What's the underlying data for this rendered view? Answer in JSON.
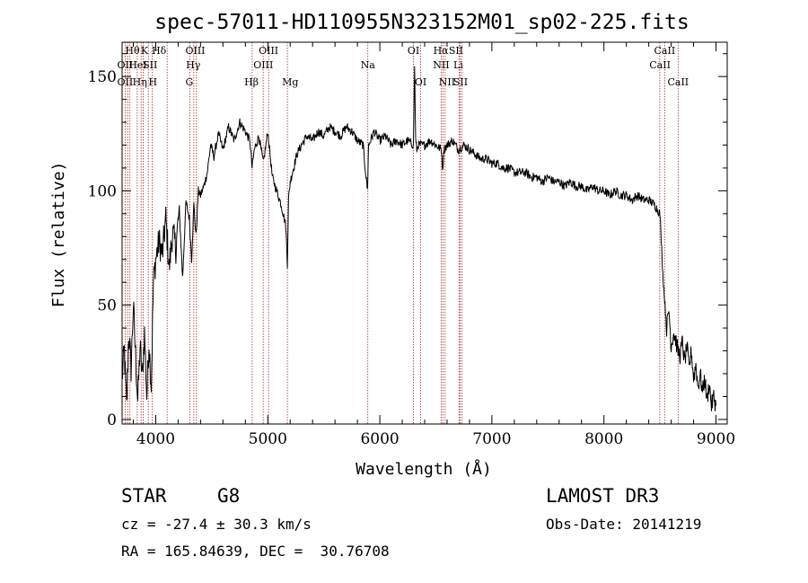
{
  "chart_data": {
    "type": "line",
    "title": "spec-57011-HD110955N323152M01_sp02-225.fits",
    "xlabel": "Wavelength (Å)",
    "ylabel": "Flux (relative)",
    "xlim": [
      3700,
      9100
    ],
    "ylim": [
      -2,
      165
    ],
    "x_ticks": [
      4000,
      5000,
      6000,
      7000,
      8000,
      9000
    ],
    "y_ticks": [
      0,
      50,
      100,
      150
    ],
    "x_minor_step": 200,
    "y_minor_step": 10,
    "grid": false,
    "series": [
      {
        "name": "flux",
        "x": [
          3700,
          3720,
          3740,
          3760,
          3780,
          3800,
          3820,
          3840,
          3860,
          3880,
          3900,
          3920,
          3940,
          3960,
          3980,
          4000,
          4030,
          4060,
          4090,
          4120,
          4150,
          4180,
          4210,
          4240,
          4270,
          4300,
          4320,
          4340,
          4360,
          4380,
          4400,
          4430,
          4460,
          4490,
          4520,
          4560,
          4600,
          4650,
          4700,
          4750,
          4800,
          4840,
          4860,
          4880,
          4920,
          4960,
          5000,
          5040,
          5080,
          5120,
          5160,
          5175,
          5185,
          5200,
          5230,
          5260,
          5300,
          5350,
          5400,
          5450,
          5500,
          5550,
          5600,
          5650,
          5700,
          5750,
          5800,
          5850,
          5890,
          5895,
          5900,
          5950,
          6000,
          6050,
          6100,
          6150,
          6200,
          6250,
          6300,
          6310,
          6320,
          6330,
          6340,
          6400,
          6450,
          6500,
          6550,
          6563,
          6570,
          6600,
          6650,
          6700,
          6750,
          6800,
          6850,
          6900,
          6950,
          7000,
          7050,
          7100,
          7150,
          7200,
          7250,
          7300,
          7350,
          7400,
          7450,
          7500,
          7550,
          7600,
          7650,
          7700,
          7750,
          7800,
          7850,
          7900,
          7950,
          8000,
          8050,
          8100,
          8150,
          8200,
          8250,
          8300,
          8350,
          8400,
          8450,
          8500,
          8530,
          8560,
          8580,
          8600,
          8620,
          8640,
          8660,
          8680,
          8700,
          8720,
          8740,
          8760,
          8780,
          8800,
          8820,
          8840,
          8860,
          8880,
          8900,
          8920,
          8940,
          8960,
          8980,
          9000
        ],
        "values": [
          18,
          30,
          5,
          38,
          22,
          50,
          28,
          8,
          32,
          18,
          38,
          10,
          34,
          15,
          60,
          70,
          78,
          72,
          88,
          66,
          82,
          75,
          92,
          62,
          95,
          88,
          70,
          94,
          80,
          100,
          98,
          102,
          108,
          120,
          115,
          125,
          118,
          128,
          122,
          130,
          126,
          122,
          110,
          118,
          124,
          112,
          126,
          106,
          100,
          94,
          85,
          68,
          96,
          104,
          110,
          116,
          120,
          124,
          122,
          126,
          124,
          128,
          126,
          124,
          128,
          126,
          122,
          120,
          100,
          112,
          120,
          126,
          122,
          124,
          120,
          122,
          120,
          122,
          120,
          155,
          122,
          118,
          120,
          120,
          122,
          120,
          118,
          108,
          118,
          120,
          122,
          118,
          120,
          118,
          116,
          114,
          114,
          112,
          112,
          110,
          110,
          108,
          108,
          108,
          106,
          106,
          104,
          106,
          104,
          104,
          102,
          104,
          102,
          102,
          100,
          102,
          100,
          100,
          98,
          100,
          98,
          98,
          96,
          98,
          96,
          96,
          94,
          90,
          60,
          40,
          48,
          32,
          38,
          35,
          30,
          28,
          34,
          25,
          32,
          22,
          30,
          18,
          24,
          14,
          20,
          12,
          18,
          8,
          16,
          6,
          10,
          6
        ],
        "color": "#000000"
      }
    ],
    "spectral_lines": [
      {
        "x": 3727,
        "label": "OII",
        "row": 2,
        "label_x": 3727
      },
      {
        "x": 3750,
        "label": "OII",
        "row": 3,
        "label_x": 3727
      },
      {
        "x": 3770,
        "label": "Hθ",
        "row": 1,
        "label_x": 3792
      },
      {
        "x": 3835,
        "label": "HeI",
        "row": 2,
        "label_x": 3840
      },
      {
        "x": 3870,
        "label": "Hη",
        "row": 3,
        "label_x": 3858
      },
      {
        "x": 3889,
        "label": "K",
        "row": 1,
        "label_x": 3900
      },
      {
        "x": 3934,
        "label": "SII",
        "row": 2,
        "label_x": 3950
      },
      {
        "x": 3969,
        "label": "H",
        "row": 3,
        "label_x": 3975
      },
      {
        "x": 4102,
        "label": "Hδ",
        "row": 1,
        "label_x": 4030
      },
      {
        "x": 4304,
        "label": "G",
        "row": 3,
        "label_x": 4300
      },
      {
        "x": 4340,
        "label": "Hγ",
        "row": 2,
        "label_x": 4335
      },
      {
        "x": 4363,
        "label": "OIII",
        "row": 1,
        "label_x": 4353
      },
      {
        "x": 4861,
        "label": "Hβ",
        "row": 3,
        "label_x": 4855
      },
      {
        "x": 4959,
        "label": "OIII",
        "row": 2,
        "label_x": 4960
      },
      {
        "x": 5007,
        "label": "OIII",
        "row": 1,
        "label_x": 5007
      },
      {
        "x": 5175,
        "label": "Mg",
        "row": 3,
        "label_x": 5200
      },
      {
        "x": 5893,
        "label": "Na",
        "row": 2,
        "label_x": 5893
      },
      {
        "x": 6300,
        "label": "OI",
        "row": 1,
        "label_x": 6300
      },
      {
        "x": 6364,
        "label": "OI",
        "row": 3,
        "label_x": 6364
      },
      {
        "x": 6548,
        "label": "NII",
        "row": 2,
        "label_x": 6548
      },
      {
        "x": 6563,
        "label": "Hα",
        "row": 1,
        "label_x": 6545
      },
      {
        "x": 6583,
        "label": "NII",
        "row": 3,
        "label_x": 6600
      },
      {
        "x": 6707,
        "label": "Li",
        "row": 2,
        "label_x": 6700
      },
      {
        "x": 6716,
        "label": "SII",
        "row": 1,
        "label_x": 6680
      },
      {
        "x": 6731,
        "label": "SII",
        "row": 3,
        "label_x": 6720
      },
      {
        "x": 8498,
        "label": "CaII",
        "row": 2,
        "label_x": 8500
      },
      {
        "x": 8542,
        "label": "CaII",
        "row": 1,
        "label_x": 8542
      },
      {
        "x": 8662,
        "label": "CaII",
        "row": 3,
        "label_x": 8662
      }
    ]
  },
  "info": {
    "object_class": "STAR",
    "subclass": "G8",
    "survey": "LAMOST DR3",
    "redshift": "cz = -27.4 ± 30.3 km/s",
    "obs_date": "Obs-Date: 20141219",
    "coords": "RA = 165.84639, DEC =  30.76708"
  }
}
